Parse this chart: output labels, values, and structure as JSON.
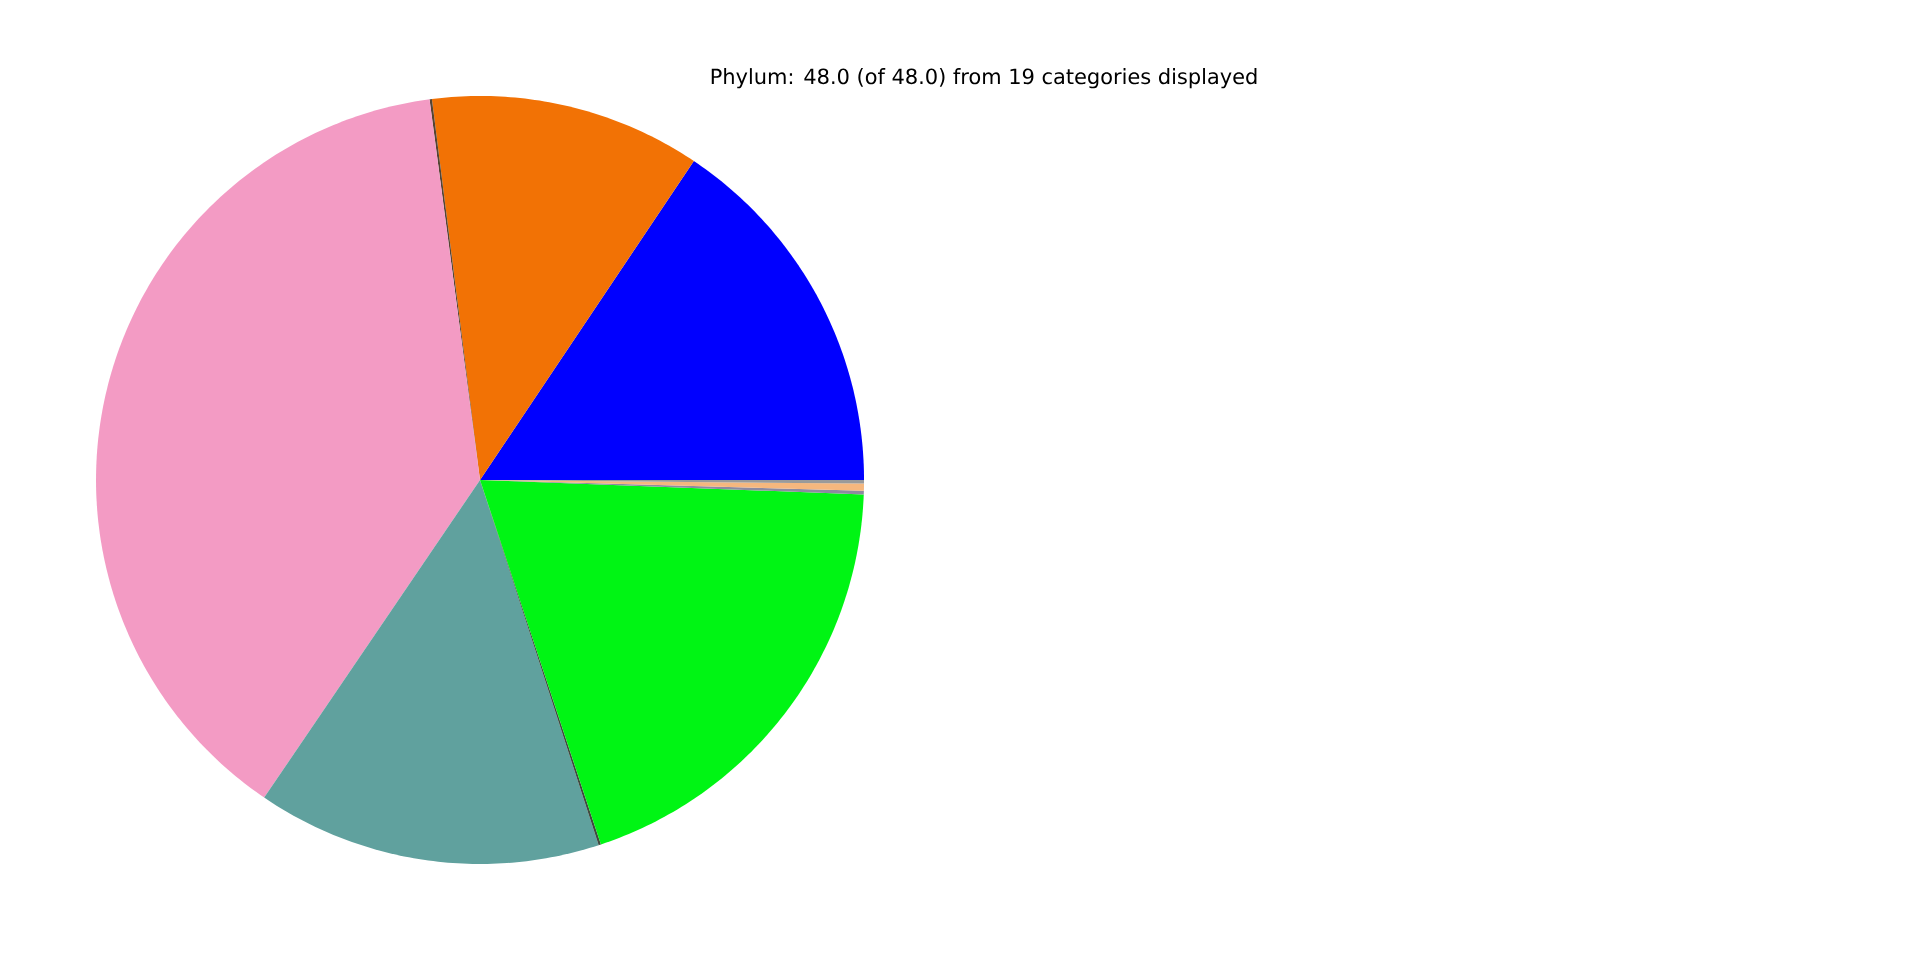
{
  "chart_data": {
    "type": "pie",
    "title": "Phylum: 48.0 (of 48.0) from 19 categories displayed",
    "categories": [
      null,
      null,
      null,
      null,
      null,
      null,
      null,
      null,
      null,
      null,
      null,
      null,
      null,
      null,
      null,
      null,
      null,
      null,
      null
    ],
    "values": [
      15.6,
      11.4,
      0.1,
      38.4,
      14.5,
      0.1,
      19.3,
      0.15,
      0.3,
      0.15,
      null,
      null,
      null,
      null,
      null,
      null,
      null,
      null,
      null
    ],
    "colors": [
      "#0000ff",
      "#f27205",
      "#554433",
      "#f39bc4",
      "#60a19e",
      "#404a40",
      "#00f514",
      "#8c8aa0",
      "#f5b77e",
      "#9a9a9a",
      null,
      null,
      null,
      null,
      null,
      null,
      null,
      null,
      null
    ]
  }
}
